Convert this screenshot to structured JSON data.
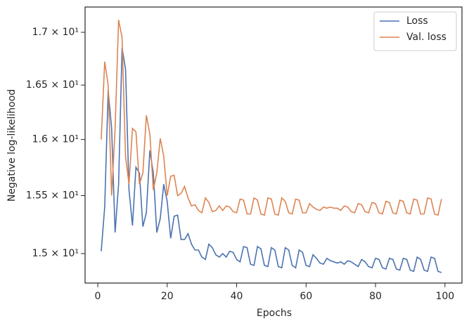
{
  "chart_data": {
    "type": "line",
    "xlabel": "Epochs",
    "ylabel": "Negative log-likelihood",
    "x": [
      1,
      2,
      3,
      4,
      5,
      6,
      7,
      8,
      9,
      10,
      11,
      12,
      13,
      14,
      15,
      16,
      17,
      18,
      19,
      20,
      21,
      22,
      23,
      24,
      25,
      26,
      27,
      28,
      29,
      30,
      31,
      32,
      33,
      34,
      35,
      36,
      37,
      38,
      39,
      40,
      41,
      42,
      43,
      44,
      45,
      46,
      47,
      48,
      49,
      50,
      51,
      52,
      53,
      54,
      55,
      56,
      57,
      58,
      59,
      60,
      61,
      62,
      63,
      64,
      65,
      66,
      67,
      68,
      69,
      70,
      71,
      72,
      73,
      74,
      75,
      76,
      77,
      78,
      79,
      80,
      81,
      82,
      83,
      84,
      85,
      86,
      87,
      88,
      89,
      90,
      91,
      92,
      93,
      94,
      95,
      96,
      97,
      98,
      99
    ],
    "series": [
      {
        "name": "Loss",
        "color": "#4c72b0",
        "values": [
          15.02,
          15.4,
          16.45,
          16.1,
          15.18,
          15.6,
          16.85,
          16.65,
          15.55,
          15.24,
          15.75,
          15.7,
          15.23,
          15.35,
          15.9,
          15.7,
          15.18,
          15.3,
          15.6,
          15.45,
          15.13,
          15.32,
          15.33,
          15.12,
          15.12,
          15.17,
          15.08,
          15.03,
          15.03,
          14.97,
          14.95,
          15.08,
          15.05,
          14.99,
          14.97,
          15.0,
          14.97,
          15.02,
          15.01,
          14.95,
          14.93,
          15.06,
          15.05,
          14.91,
          14.9,
          15.06,
          15.04,
          14.9,
          14.89,
          15.05,
          15.03,
          14.89,
          14.88,
          15.05,
          15.03,
          14.9,
          14.88,
          15.03,
          15.01,
          14.9,
          14.89,
          14.99,
          14.96,
          14.92,
          14.91,
          14.96,
          14.94,
          14.93,
          14.92,
          14.93,
          14.91,
          14.94,
          14.93,
          14.91,
          14.89,
          14.95,
          14.93,
          14.89,
          14.88,
          14.96,
          14.95,
          14.88,
          14.87,
          14.96,
          14.95,
          14.87,
          14.86,
          14.96,
          14.95,
          14.86,
          14.85,
          14.97,
          14.95,
          14.86,
          14.85,
          14.97,
          14.96,
          14.85,
          14.84
        ]
      },
      {
        "name": "Val. loss",
        "color": "#dd8452",
        "values": [
          16.0,
          16.72,
          16.5,
          15.5,
          16.1,
          17.12,
          16.95,
          15.85,
          15.6,
          16.1,
          16.07,
          15.6,
          15.7,
          16.22,
          16.05,
          15.55,
          15.7,
          16.01,
          15.85,
          15.5,
          15.67,
          15.68,
          15.5,
          15.52,
          15.58,
          15.48,
          15.41,
          15.42,
          15.37,
          15.35,
          15.48,
          15.44,
          15.36,
          15.37,
          15.41,
          15.37,
          15.41,
          15.4,
          15.36,
          15.35,
          15.47,
          15.46,
          15.34,
          15.34,
          15.48,
          15.46,
          15.34,
          15.33,
          15.48,
          15.47,
          15.34,
          15.33,
          15.48,
          15.45,
          15.35,
          15.34,
          15.47,
          15.46,
          15.35,
          15.35,
          15.43,
          15.4,
          15.38,
          15.37,
          15.4,
          15.39,
          15.4,
          15.39,
          15.39,
          15.37,
          15.41,
          15.4,
          15.36,
          15.35,
          15.43,
          15.42,
          15.36,
          15.35,
          15.44,
          15.43,
          15.35,
          15.34,
          15.45,
          15.44,
          15.35,
          15.34,
          15.46,
          15.45,
          15.35,
          15.34,
          15.47,
          15.46,
          15.34,
          15.34,
          15.48,
          15.47,
          15.34,
          15.33,
          15.47
        ]
      }
    ],
    "xlim": [
      -3.65,
      104.9
    ],
    "xticks": [
      0,
      20,
      40,
      60,
      80,
      100
    ],
    "ylim": [
      14.752,
      17.245
    ],
    "yscale": "log",
    "yticks": [
      {
        "value": 15,
        "label": "1.5 × 10¹"
      },
      {
        "value": 15.5,
        "label": "1.55 × 10¹"
      },
      {
        "value": 16,
        "label": "1.6 × 10¹"
      },
      {
        "value": 16.5,
        "label": "1.65 × 10¹"
      },
      {
        "value": 17,
        "label": "1.7 × 10¹"
      }
    ],
    "grid": false,
    "legend": "upper right"
  }
}
